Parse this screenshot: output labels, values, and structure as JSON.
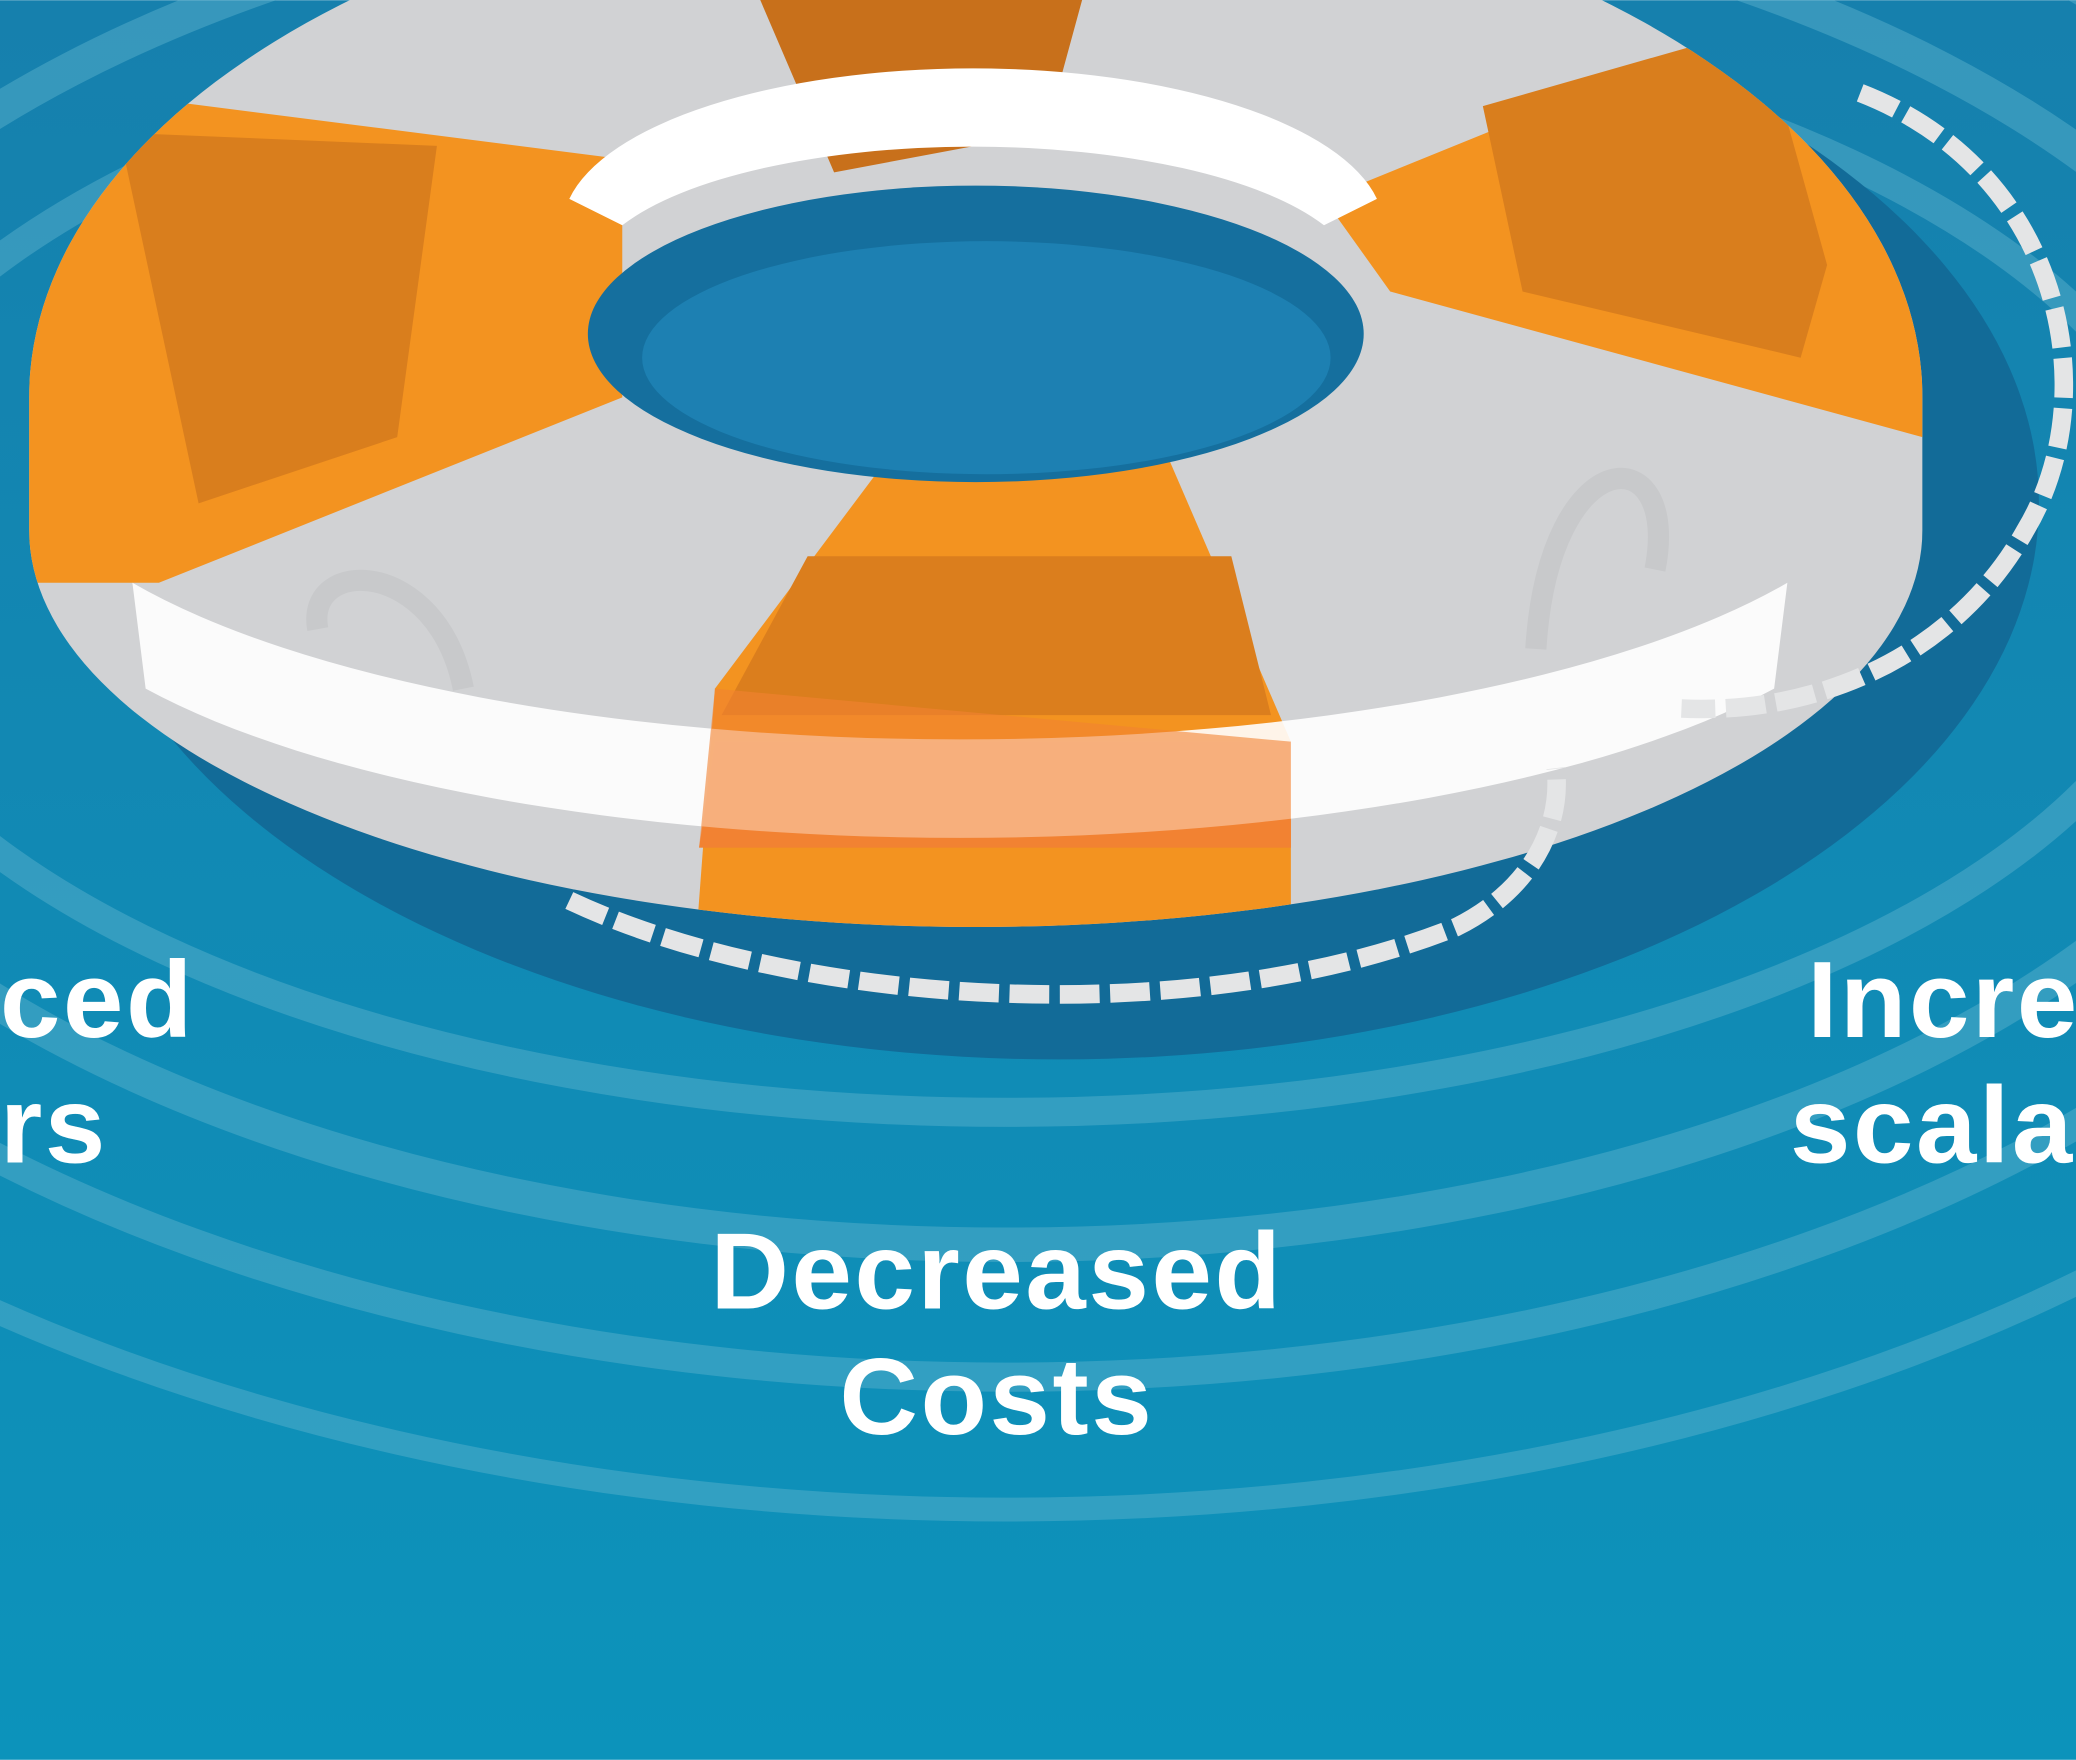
{
  "labels": [
    {
      "lines": [
        "ced",
        "rs"
      ]
    },
    {
      "lines": [
        "Decreased",
        "Costs"
      ]
    },
    {
      "lines": [
        "Incre",
        "scala"
      ]
    }
  ]
}
